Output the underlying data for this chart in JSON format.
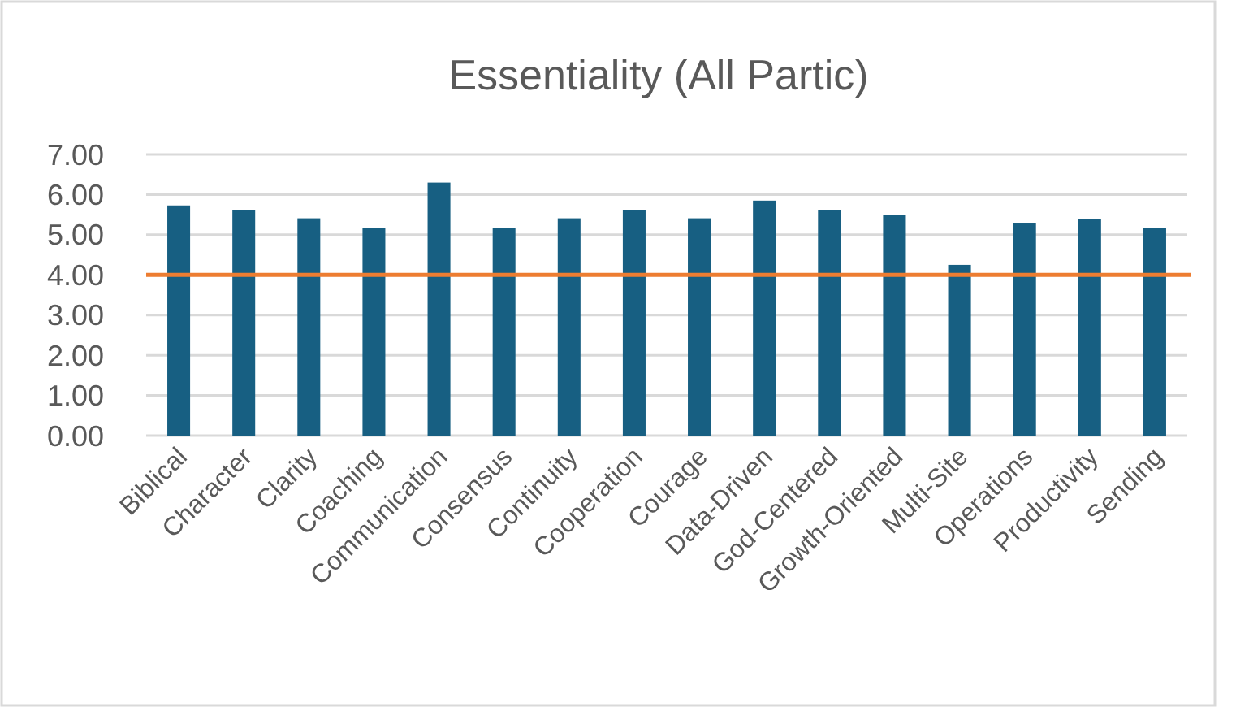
{
  "chart_data": {
    "type": "bar",
    "title": "Essentiality (All Partic)",
    "categories": [
      "Biblical",
      "Character",
      "Clarity",
      "Coaching",
      "Communication",
      "Consensus",
      "Continuity",
      "Cooperation",
      "Courage",
      "Data-Driven",
      "God-Centered",
      "Growth-Oriented",
      "Multi-Site",
      "Operations",
      "Productivity",
      "Sending"
    ],
    "values": [
      5.73,
      5.62,
      5.41,
      5.16,
      6.3,
      5.16,
      5.41,
      5.62,
      5.41,
      5.85,
      5.62,
      5.5,
      4.25,
      5.28,
      5.39,
      5.16
    ],
    "color": "#175f82",
    "ylim": [
      0,
      7
    ],
    "yticks": [
      {
        "value": 0,
        "label": "0.00"
      },
      {
        "value": 1,
        "label": "1.00"
      },
      {
        "value": 2,
        "label": "2.00"
      },
      {
        "value": 3,
        "label": "3.00"
      },
      {
        "value": 4,
        "label": "4.00"
      },
      {
        "value": 5,
        "label": "5.00"
      },
      {
        "value": 6,
        "label": "6.00"
      },
      {
        "value": 7,
        "label": "7.00"
      }
    ],
    "grid": "y",
    "ref_lines": [
      {
        "axis": "y",
        "value": 4,
        "color": "#ed7d31"
      }
    ]
  }
}
